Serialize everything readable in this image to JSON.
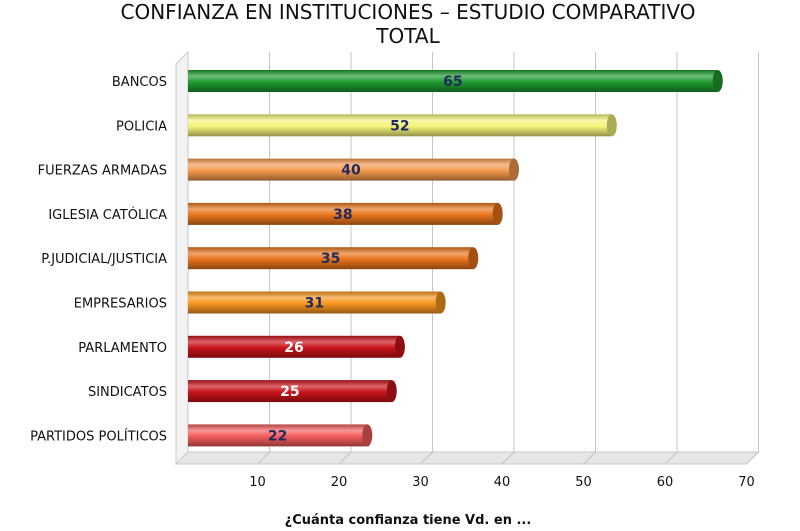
{
  "chart_data": {
    "type": "bar",
    "orientation": "horizontal",
    "title": "CONFIANZA EN INSTITUCIONES – ESTUDIO COMPARATIVO",
    "subtitle": "TOTAL",
    "xlabel": "¿Cuánta confianza tiene Vd. en ...",
    "xlim": [
      0,
      70
    ],
    "xticks": [
      10,
      20,
      30,
      40,
      50,
      60,
      70
    ],
    "grid": true,
    "categories": [
      "BANCOS",
      "POLICIA",
      "FUERZAS ARMADAS",
      "IGLESIA CATÓLICA",
      "P.JUDICIAL/JUSTICIA",
      "EMPRESARIOS",
      "PARLAMENTO",
      "SINDICATOS",
      "PARTIDOS POLÍTICOS"
    ],
    "values": [
      65,
      52,
      40,
      38,
      35,
      31,
      26,
      25,
      22
    ],
    "bar_colors": [
      "#1e9a2e",
      "#f4f47a",
      "#f59a4f",
      "#e8741b",
      "#e8741b",
      "#f7961f",
      "#c8121a",
      "#c8121a",
      "#f25c5c"
    ],
    "label_colors": [
      "#1f2a5e",
      "#1f2a5e",
      "#1f2a5e",
      "#1f2a5e",
      "#1f2a5e",
      "#1f2a5e",
      "#ffffff",
      "#ffffff",
      "#1f2a5e"
    ]
  }
}
